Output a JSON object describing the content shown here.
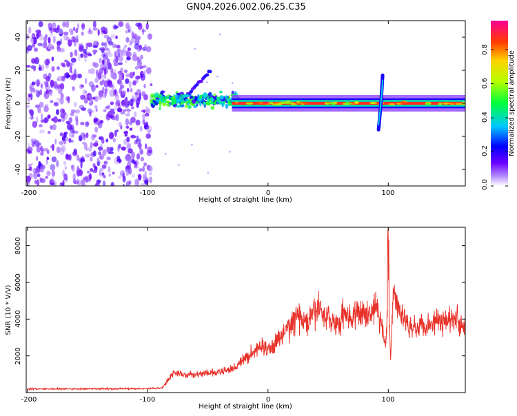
{
  "title": "GN04.2026.002.06.25.C35",
  "chart_data": [
    {
      "type": "heatmap",
      "name": "spectrogram",
      "xlabel": "Height of straight line (km)",
      "ylabel": "Frequency (Hz)",
      "xlim": [
        -201,
        164
      ],
      "ylim": [
        -50,
        50
      ],
      "xticks": [
        -200,
        -100,
        0,
        100
      ],
      "xtick_labels": [
        "-200",
        "-100",
        "0",
        "100"
      ],
      "yticks": [
        -40,
        -20,
        0,
        20,
        40
      ],
      "ytick_labels": [
        "-40",
        "-20",
        "0",
        "20",
        "40"
      ],
      "colorbar": {
        "label": "Normalized spectral amplitude",
        "range": [
          0,
          0.97
        ],
        "ticks": [
          0.0,
          0.2,
          0.4,
          0.6,
          0.8
        ],
        "tick_labels": [
          "0.0",
          "0.2",
          "0.4",
          "0.6",
          "0.8"
        ]
      },
      "features": [
        {
          "name": "noise-region",
          "x_range": [
            -200,
            -97
          ],
          "freq_range": [
            -50,
            48
          ],
          "amplitude": 0.15
        },
        {
          "name": "scattered-blobs",
          "x_range": [
            -97,
            -25
          ],
          "freq_center": 2,
          "freq_spread": 6,
          "amplitude": 0.45
        },
        {
          "name": "branch-upper",
          "x_from": -65,
          "x_to": -48,
          "freq_from": 6,
          "freq_to": 20
        },
        {
          "name": "main-band",
          "x_range": [
            -30,
            164
          ],
          "freq_center": 0,
          "freq_halfwidth": 3,
          "amplitude": 0.95
        },
        {
          "name": "spike-near-100",
          "x": 93,
          "freq_range": [
            -16,
            17
          ]
        }
      ]
    },
    {
      "type": "line",
      "name": "snr",
      "xlabel": "Height of straight line (km)",
      "ylabel": "SNR (10 * V/V)",
      "xlim": [
        -201,
        164
      ],
      "ylim": [
        0,
        9000
      ],
      "xticks": [
        -200,
        -100,
        0,
        100
      ],
      "xtick_labels": [
        "-200",
        "-100",
        "0",
        "100"
      ],
      "yticks": [
        2000,
        4000,
        6000,
        8000
      ],
      "ytick_labels": [
        "2000",
        "4000",
        "6000",
        "8000"
      ],
      "series": [
        {
          "name": "SNR",
          "color": "#e8322a",
          "x": [
            -200,
            -150,
            -100,
            -88,
            -82,
            -78,
            -70,
            -60,
            -50,
            -40,
            -30,
            -25,
            -20,
            -10,
            -5,
            0,
            5,
            10,
            15,
            20,
            25,
            30,
            35,
            38,
            42,
            45,
            50,
            55,
            60,
            62,
            70,
            75,
            80,
            85,
            90,
            95,
            98,
            100,
            102,
            104,
            110,
            120,
            130,
            140,
            150,
            155,
            160,
            164
          ],
          "values": [
            200,
            200,
            220,
            250,
            800,
            1100,
            950,
            1000,
            1050,
            1100,
            1300,
            1500,
            1800,
            2300,
            2600,
            2300,
            2600,
            3000,
            3400,
            3800,
            4200,
            3800,
            3900,
            4300,
            4700,
            4300,
            4100,
            3800,
            3700,
            4500,
            4000,
            4300,
            4300,
            4400,
            4700,
            3500,
            2500,
            6500,
            1500,
            5500,
            4200,
            3600,
            3700,
            3900,
            4000,
            4200,
            3700,
            3900
          ]
        }
      ]
    }
  ]
}
